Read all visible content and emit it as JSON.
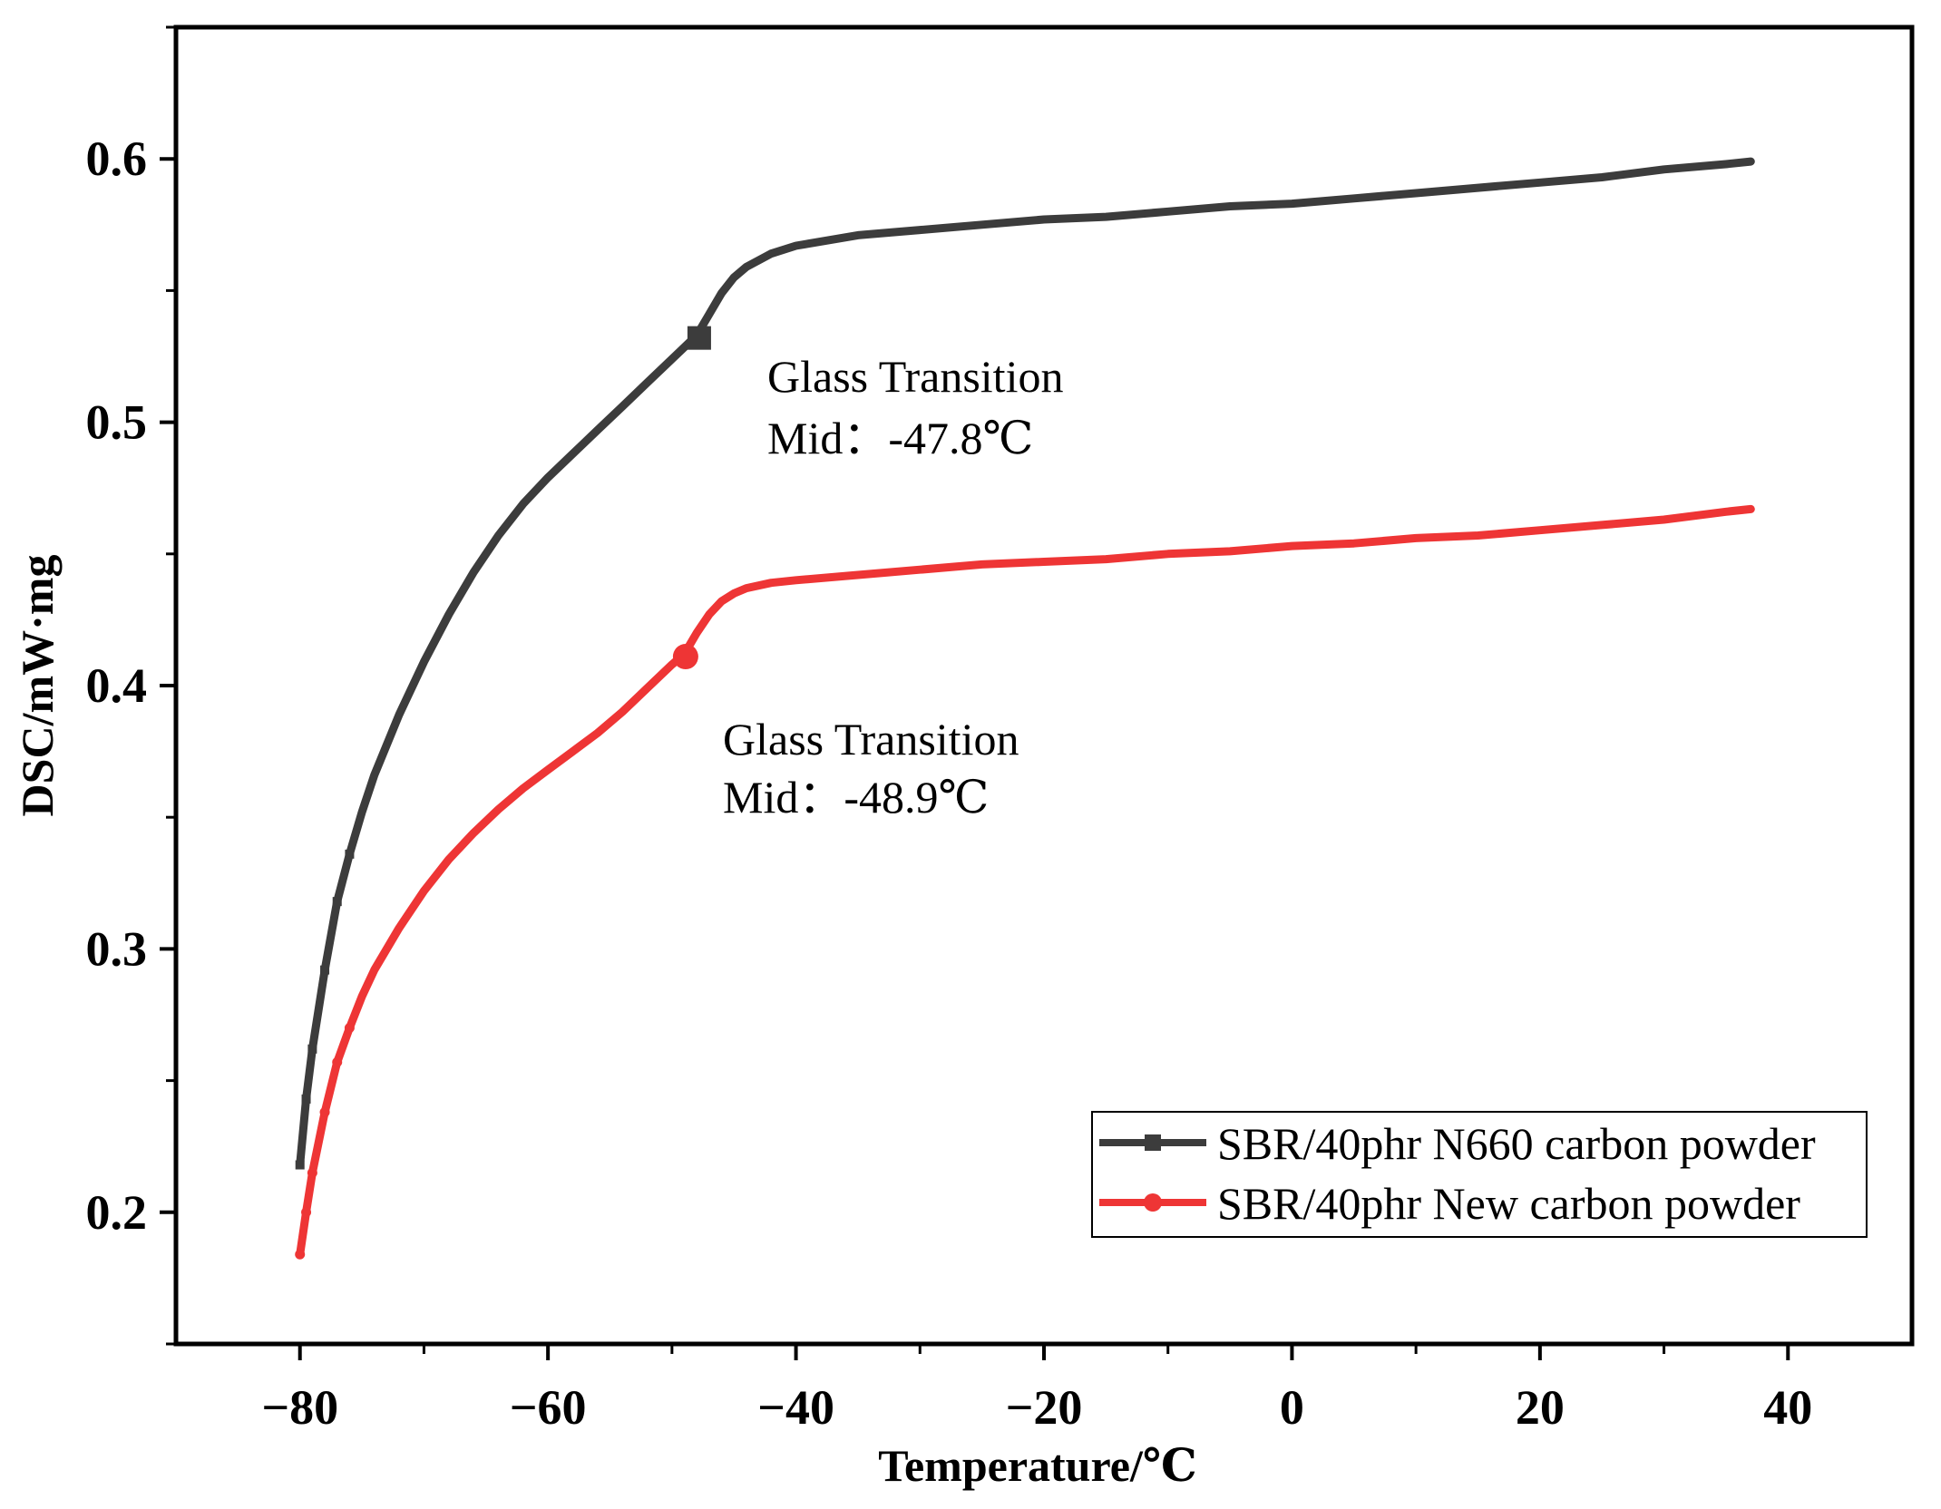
{
  "chart_data": {
    "type": "line",
    "title": "",
    "xlabel": "Temperature/℃",
    "ylabel": "DSC/mW·mg",
    "xlim": [
      -90,
      50
    ],
    "ylim": [
      0.15,
      0.65
    ],
    "x_ticks": [
      -80,
      -60,
      -40,
      -20,
      0,
      20,
      40
    ],
    "x_tick_labels": [
      "−80",
      "−60",
      "−40",
      "−20",
      "0",
      "20",
      "40"
    ],
    "y_ticks": [
      0.2,
      0.3,
      0.4,
      0.5,
      0.6
    ],
    "y_tick_labels": [
      "0.2",
      "0.3",
      "0.4",
      "0.5",
      "0.6"
    ],
    "grid": false,
    "legend_position": "bottom-right",
    "series": [
      {
        "name": "SBR/40phr N660 carbon powder",
        "color": "#3c3c3c",
        "marker": "square",
        "points": [
          [
            -80,
            0.218
          ],
          [
            -79.5,
            0.243
          ],
          [
            -79,
            0.262
          ],
          [
            -78,
            0.292
          ],
          [
            -77,
            0.318
          ],
          [
            -76,
            0.336
          ],
          [
            -75,
            0.352
          ],
          [
            -74,
            0.366
          ],
          [
            -72,
            0.389
          ],
          [
            -70,
            0.409
          ],
          [
            -68,
            0.427
          ],
          [
            -66,
            0.443
          ],
          [
            -64,
            0.457
          ],
          [
            -62,
            0.469
          ],
          [
            -60,
            0.479
          ],
          [
            -58,
            0.488
          ],
          [
            -56,
            0.497
          ],
          [
            -54,
            0.506
          ],
          [
            -52,
            0.515
          ],
          [
            -50,
            0.524
          ],
          [
            -48,
            0.533
          ],
          [
            -47,
            0.541
          ],
          [
            -46,
            0.549
          ],
          [
            -45,
            0.555
          ],
          [
            -44,
            0.559
          ],
          [
            -42,
            0.564
          ],
          [
            -40,
            0.567
          ],
          [
            -35,
            0.571
          ],
          [
            -30,
            0.573
          ],
          [
            -25,
            0.575
          ],
          [
            -20,
            0.577
          ],
          [
            -15,
            0.578
          ],
          [
            -10,
            0.58
          ],
          [
            -5,
            0.582
          ],
          [
            0,
            0.583
          ],
          [
            5,
            0.585
          ],
          [
            10,
            0.587
          ],
          [
            15,
            0.589
          ],
          [
            20,
            0.591
          ],
          [
            25,
            0.593
          ],
          [
            30,
            0.596
          ],
          [
            35,
            0.598
          ],
          [
            37,
            0.599
          ]
        ]
      },
      {
        "name": "SBR/40phr New carbon powder",
        "color": "#ee3535",
        "marker": "circle",
        "points": [
          [
            -80,
            0.184
          ],
          [
            -79.5,
            0.2
          ],
          [
            -79,
            0.215
          ],
          [
            -78,
            0.238
          ],
          [
            -77,
            0.257
          ],
          [
            -76,
            0.27
          ],
          [
            -75,
            0.282
          ],
          [
            -74,
            0.292
          ],
          [
            -72,
            0.308
          ],
          [
            -70,
            0.322
          ],
          [
            -68,
            0.334
          ],
          [
            -66,
            0.344
          ],
          [
            -64,
            0.353
          ],
          [
            -62,
            0.361
          ],
          [
            -60,
            0.368
          ],
          [
            -58,
            0.375
          ],
          [
            -56,
            0.382
          ],
          [
            -54,
            0.39
          ],
          [
            -52,
            0.399
          ],
          [
            -50,
            0.408
          ],
          [
            -49,
            0.412
          ],
          [
            -48,
            0.42
          ],
          [
            -47,
            0.427
          ],
          [
            -46,
            0.432
          ],
          [
            -45,
            0.435
          ],
          [
            -44,
            0.437
          ],
          [
            -42,
            0.439
          ],
          [
            -40,
            0.44
          ],
          [
            -35,
            0.442
          ],
          [
            -30,
            0.444
          ],
          [
            -25,
            0.446
          ],
          [
            -20,
            0.447
          ],
          [
            -15,
            0.448
          ],
          [
            -10,
            0.45
          ],
          [
            -5,
            0.451
          ],
          [
            0,
            0.453
          ],
          [
            5,
            0.454
          ],
          [
            10,
            0.456
          ],
          [
            15,
            0.457
          ],
          [
            20,
            0.459
          ],
          [
            25,
            0.461
          ],
          [
            30,
            0.463
          ],
          [
            35,
            0.466
          ],
          [
            37,
            0.467
          ]
        ]
      }
    ],
    "highlight_points": [
      {
        "series": 0,
        "x": -47.8,
        "y": 0.532,
        "marker": "square"
      },
      {
        "series": 1,
        "x": -48.9,
        "y": 0.411,
        "marker": "circle"
      }
    ],
    "annotations": [
      {
        "title": "Glass Transition",
        "detail": "Mid：-47.8℃"
      },
      {
        "title": "Glass Transition",
        "detail": "Mid：-48.9℃"
      }
    ]
  }
}
